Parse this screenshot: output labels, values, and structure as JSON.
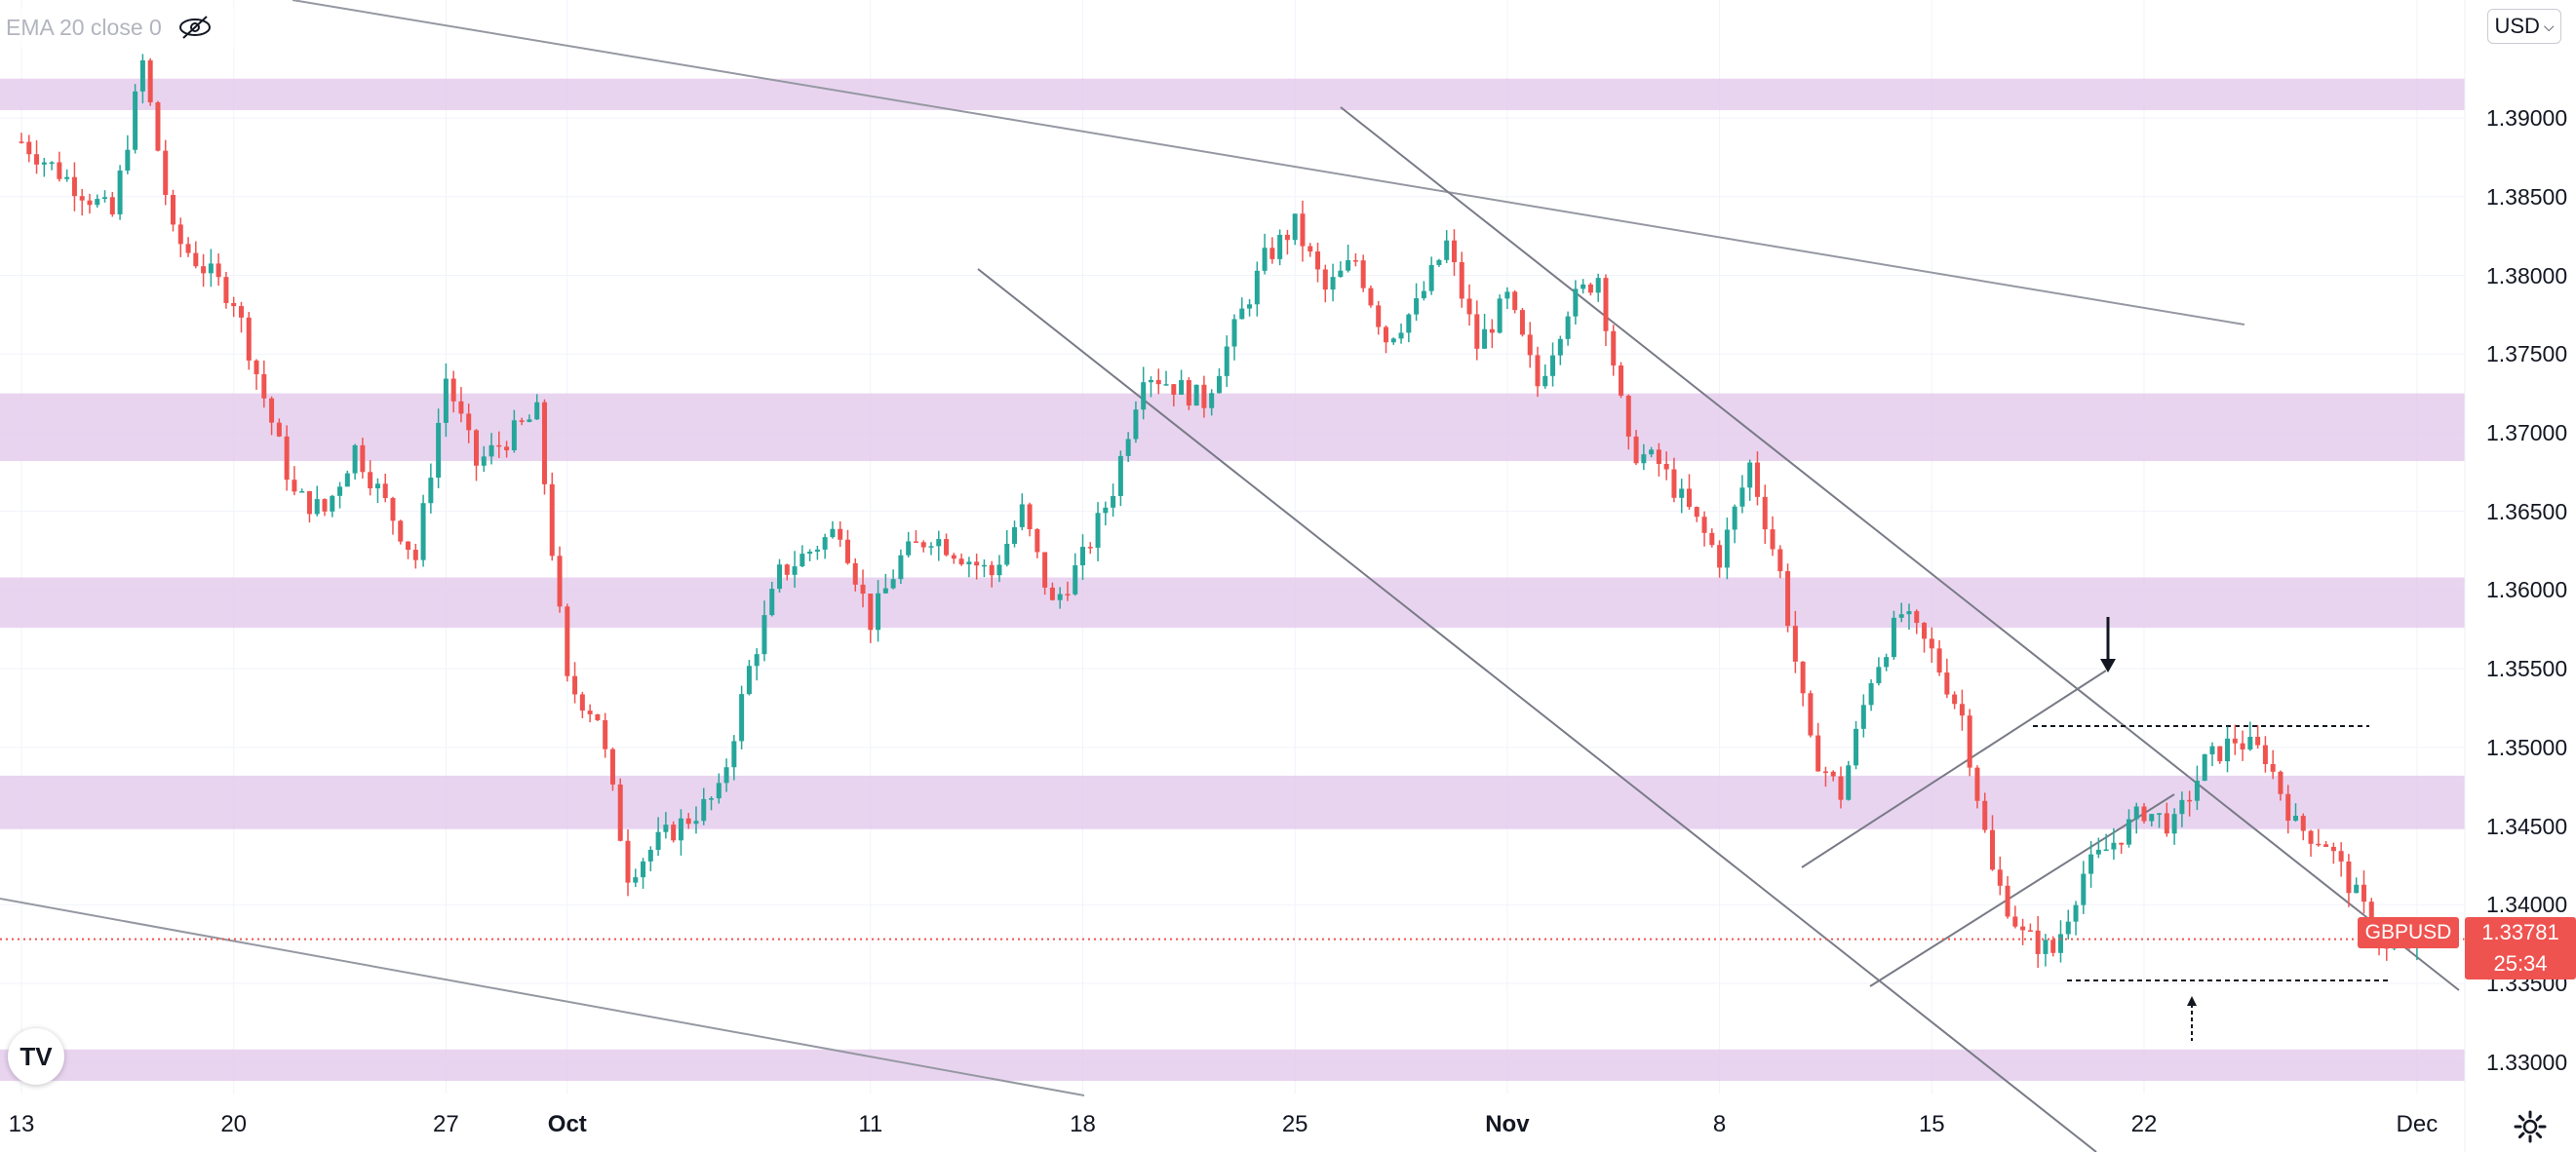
{
  "legend": {
    "indicator_text": "EMA 20 close 0",
    "visibility_icon": "eye-crossed-icon"
  },
  "currency": {
    "label": "USD"
  },
  "colors": {
    "up": "#26a69a",
    "down": "#ef5350",
    "zone": "#e1c4ea",
    "line": "#787b86",
    "background": "#ffffff"
  },
  "logo": {
    "text": "TV"
  },
  "settings_icon": "gear-icon",
  "chart_data": {
    "type": "candlestick",
    "symbol": "GBPUSD",
    "last_price": "1.33781",
    "countdown": "25:34",
    "y_axis": {
      "range": [
        1.328,
        1.3975
      ],
      "ticks": [
        "1.39000",
        "1.38500",
        "1.38000",
        "1.37500",
        "1.37000",
        "1.36500",
        "1.36000",
        "1.35500",
        "1.35000",
        "1.34500",
        "1.34000",
        "1.33500",
        "1.33000"
      ]
    },
    "x_axis": {
      "labels": [
        {
          "text": "13",
          "bold": false
        },
        {
          "text": "20",
          "bold": false
        },
        {
          "text": "27",
          "bold": false
        },
        {
          "text": "Oct",
          "bold": true
        },
        {
          "text": "11",
          "bold": false
        },
        {
          "text": "18",
          "bold": false
        },
        {
          "text": "25",
          "bold": false
        },
        {
          "text": "Nov",
          "bold": true
        },
        {
          "text": "8",
          "bold": false
        },
        {
          "text": "15",
          "bold": false
        },
        {
          "text": "22",
          "bold": false
        },
        {
          "text": "Dec",
          "bold": false
        }
      ]
    },
    "zones": [
      {
        "from": 1.3905,
        "to": 1.3925
      },
      {
        "from": 1.3682,
        "to": 1.3725
      },
      {
        "from": 1.3576,
        "to": 1.3608
      },
      {
        "from": 1.3448,
        "to": 1.3482
      },
      {
        "from": 1.3288,
        "to": 1.3308
      }
    ],
    "price_path": [
      {
        "date": "Sep 13",
        "price": 1.3885
      },
      {
        "date": "Sep 16",
        "price": 1.3838
      },
      {
        "date": "Sep 17",
        "price": 1.3935
      },
      {
        "date": "Sep 18",
        "price": 1.3825
      },
      {
        "date": "Sep 20",
        "price": 1.3785
      },
      {
        "date": "Sep 22",
        "price": 1.366
      },
      {
        "date": "Sep 23",
        "price": 1.365
      },
      {
        "date": "Sep 24",
        "price": 1.369
      },
      {
        "date": "Sep 26",
        "price": 1.362
      },
      {
        "date": "Sep 27",
        "price": 1.3735
      },
      {
        "date": "Sep 28",
        "price": 1.368
      },
      {
        "date": "Sep 30",
        "price": 1.3712
      },
      {
        "date": "Oct 1",
        "price": 1.354
      },
      {
        "date": "Oct 2",
        "price": 1.352
      },
      {
        "date": "Oct 3",
        "price": 1.342
      },
      {
        "date": "Oct 4",
        "price": 1.344
      },
      {
        "date": "Oct 6",
        "price": 1.347
      },
      {
        "date": "Oct 7",
        "price": 1.355
      },
      {
        "date": "Oct 8",
        "price": 1.361
      },
      {
        "date": "Oct 10",
        "price": 1.364
      },
      {
        "date": "Oct 11",
        "price": 1.358
      },
      {
        "date": "Oct 12",
        "price": 1.362
      },
      {
        "date": "Oct 13",
        "price": 1.3635
      },
      {
        "date": "Oct 15",
        "price": 1.361
      },
      {
        "date": "Oct 16",
        "price": 1.365
      },
      {
        "date": "Oct 17",
        "price": 1.359
      },
      {
        "date": "Oct 18",
        "price": 1.362
      },
      {
        "date": "Oct 19",
        "price": 1.3665
      },
      {
        "date": "Oct 20",
        "price": 1.374
      },
      {
        "date": "Oct 22",
        "price": 1.372
      },
      {
        "date": "Oct 23",
        "price": 1.3765
      },
      {
        "date": "Oct 24",
        "price": 1.381
      },
      {
        "date": "Oct 25",
        "price": 1.3832
      },
      {
        "date": "Oct 26",
        "price": 1.379
      },
      {
        "date": "Oct 27",
        "price": 1.381
      },
      {
        "date": "Oct 28",
        "price": 1.376
      },
      {
        "date": "Oct 29",
        "price": 1.378
      },
      {
        "date": "Oct 30",
        "price": 1.382
      },
      {
        "date": "Oct 31",
        "price": 1.3755
      },
      {
        "date": "Nov 1",
        "price": 1.3785
      },
      {
        "date": "Nov 2",
        "price": 1.373
      },
      {
        "date": "Nov 3",
        "price": 1.378
      },
      {
        "date": "Nov 4",
        "price": 1.38
      },
      {
        "date": "Nov 5",
        "price": 1.369
      },
      {
        "date": "Nov 6",
        "price": 1.368
      },
      {
        "date": "Nov 7",
        "price": 1.365
      },
      {
        "date": "Nov 8",
        "price": 1.362
      },
      {
        "date": "Nov 9",
        "price": 1.368
      },
      {
        "date": "Nov 10",
        "price": 1.361
      },
      {
        "date": "Nov 11",
        "price": 1.35
      },
      {
        "date": "Nov 12",
        "price": 1.347
      },
      {
        "date": "Nov 13",
        "price": 1.3545
      },
      {
        "date": "Nov 14",
        "price": 1.3585
      },
      {
        "date": "Nov 15",
        "price": 1.356
      },
      {
        "date": "Nov 16",
        "price": 1.352
      },
      {
        "date": "Nov 17",
        "price": 1.342
      },
      {
        "date": "Nov 18",
        "price": 1.338
      },
      {
        "date": "Nov 19",
        "price": 1.337
      },
      {
        "date": "Nov 20",
        "price": 1.342
      },
      {
        "date": "Nov 21",
        "price": 1.344
      },
      {
        "date": "Nov 22",
        "price": 1.346
      },
      {
        "date": "Nov 23",
        "price": 1.345
      },
      {
        "date": "Nov 24",
        "price": 1.349
      },
      {
        "date": "Nov 25",
        "price": 1.3505
      },
      {
        "date": "Nov 26",
        "price": 1.3495
      },
      {
        "date": "Nov 27",
        "price": 1.345
      },
      {
        "date": "Nov 28",
        "price": 1.344
      },
      {
        "date": "Nov 29",
        "price": 1.3405
      },
      {
        "date": "Nov 30",
        "price": 1.337
      },
      {
        "date": "Dec 1",
        "price": 1.3378
      }
    ]
  }
}
